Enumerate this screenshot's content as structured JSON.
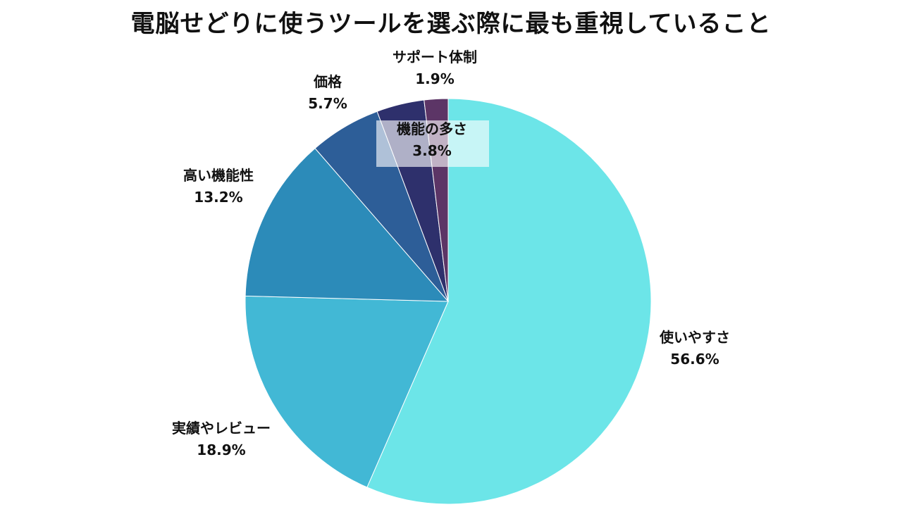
{
  "chart_data": {
    "type": "pie",
    "title": "電脳せどりに使うツールを選ぶ際に最も重視していること",
    "slices": [
      {
        "label": "使いやすさ",
        "value": 56.6,
        "value_label": "56.6%",
        "color": "#6ce5e8"
      },
      {
        "label": "実績やレビュー",
        "value": 18.9,
        "value_label": "18.9%",
        "color": "#42b8d5"
      },
      {
        "label": "高い機能性",
        "value": 13.2,
        "value_label": "13.2%",
        "color": "#2c8bb9"
      },
      {
        "label": "価格",
        "value": 5.7,
        "value_label": "5.7%",
        "color": "#2d5e98"
      },
      {
        "label": "機能の多さ",
        "value": 3.8,
        "value_label": "3.8%",
        "color": "#2e306c"
      },
      {
        "label": "サポート体制",
        "value": 1.9,
        "value_label": "1.9%",
        "color": "#5c3566"
      }
    ],
    "start_angle": "12 o'clock",
    "direction": "clockwise",
    "legend": "none"
  }
}
